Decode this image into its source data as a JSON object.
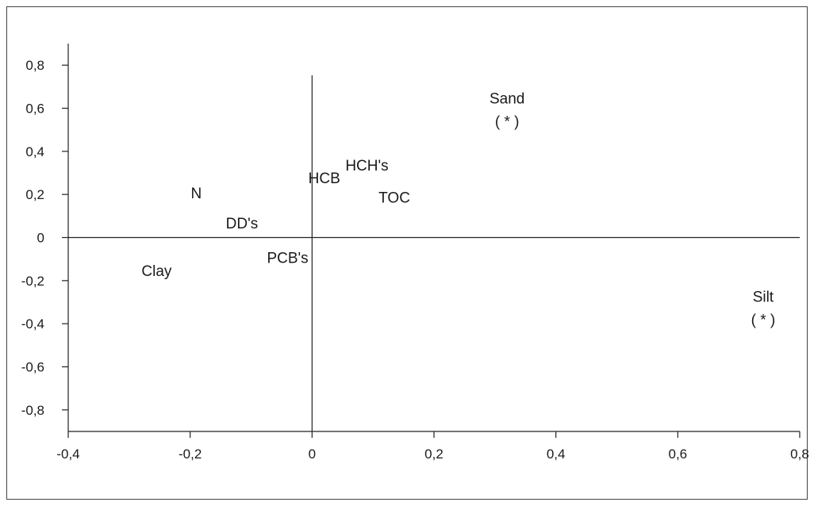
{
  "chart_data": {
    "type": "scatter",
    "xlim": [
      -0.4,
      0.8
    ],
    "ylim": [
      -0.9,
      0.9
    ],
    "x_ticks": [
      "-0,4",
      "-0,2",
      "0",
      "0,2",
      "0,4",
      "0,6",
      "0,8"
    ],
    "x_tick_values": [
      -0.4,
      -0.2,
      0,
      0.2,
      0.4,
      0.6,
      0.8
    ],
    "y_ticks": [
      "0,8",
      "0,6",
      "0,4",
      "0,2",
      "0",
      "-0,2",
      "-0,4",
      "-0,6",
      "-0,8"
    ],
    "y_tick_values": [
      0.8,
      0.6,
      0.4,
      0.2,
      0,
      -0.2,
      -0.4,
      -0.6,
      -0.8
    ],
    "grid": false,
    "points": [
      {
        "label": "N",
        "x": -0.19,
        "y": 0.2
      },
      {
        "label": "DD's",
        "x": -0.115,
        "y": 0.06
      },
      {
        "label": "PCB's",
        "x": -0.04,
        "y": -0.1
      },
      {
        "label": "Clay",
        "x": -0.255,
        "y": -0.16
      },
      {
        "label": "HCB",
        "x": 0.02,
        "y": 0.27
      },
      {
        "label": "HCH's",
        "x": 0.09,
        "y": 0.33
      },
      {
        "label": "TOC",
        "x": 0.135,
        "y": 0.18
      },
      {
        "label": "Sand",
        "marker": "( * )",
        "x": 0.32,
        "y": 0.64
      },
      {
        "label": "Silt",
        "marker": "( * )",
        "x": 0.74,
        "y": -0.28
      }
    ]
  }
}
